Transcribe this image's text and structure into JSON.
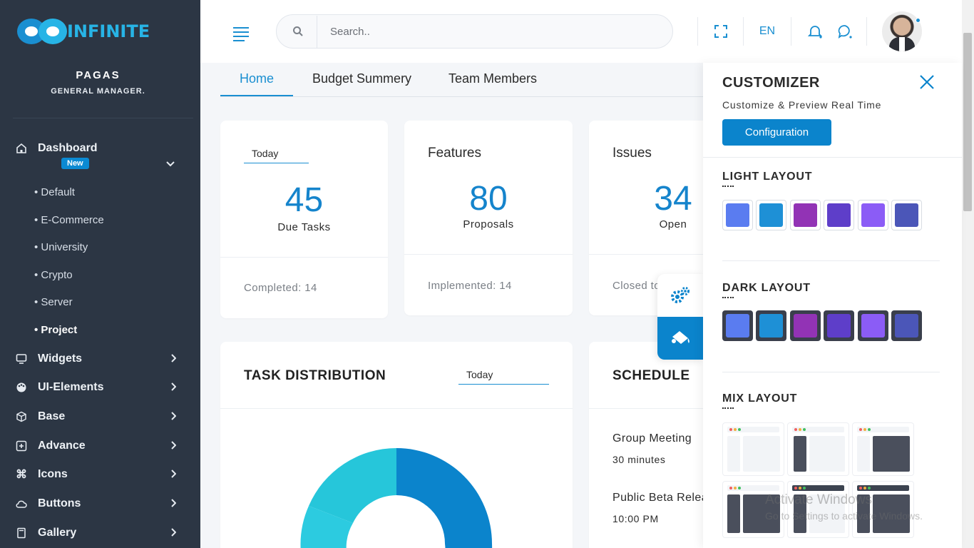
{
  "brand": {
    "name": "INFINITE",
    "accent": "#1a8fd1",
    "sidebar_bg": "#2c3644"
  },
  "user": {
    "name": "PAGAS",
    "role": "GENERAL MANAGER."
  },
  "sidebar": {
    "dashboard": {
      "label": "Dashboard",
      "badge": "New",
      "icon": "home-icon"
    },
    "dashboard_items": [
      "Default",
      "E-Commerce",
      "University",
      "Crypto",
      "Server",
      "Project"
    ],
    "active_sub_item": "Project",
    "items": [
      {
        "label": "Widgets",
        "icon": "monitor-icon"
      },
      {
        "label": "UI-Elements",
        "icon": "palette-icon"
      },
      {
        "label": "Base",
        "icon": "box-icon"
      },
      {
        "label": "Advance",
        "icon": "plus-square-icon"
      },
      {
        "label": "Icons",
        "icon": "command-icon"
      },
      {
        "label": "Buttons",
        "icon": "cloud-icon"
      },
      {
        "label": "Gallery",
        "icon": "book-icon"
      }
    ]
  },
  "header": {
    "search_placeholder": "Search..",
    "language": "EN"
  },
  "tabs": [
    {
      "label": "Home",
      "active": true
    },
    {
      "label": "Budget Summery",
      "active": false
    },
    {
      "label": "Team Members",
      "active": false
    }
  ],
  "stats": {
    "today_select": "Today",
    "tasks": {
      "value": "45",
      "label": "Due Tasks",
      "footer": "Completed: 14"
    },
    "features": {
      "title": "Features",
      "value": "80",
      "label": "Proposals",
      "footer": "Implemented: 14"
    },
    "issues": {
      "title": "Issues",
      "value": "34",
      "label": "Open",
      "footer": "Closed to"
    }
  },
  "task_distribution": {
    "title": "TASK DISTRIBUTION",
    "select": "Today",
    "colors": [
      "#0b84cc",
      "#26c6da"
    ]
  },
  "schedule": {
    "title": "SCHEDULE",
    "events": [
      {
        "name": "Group Meeting",
        "time": "30 minutes"
      },
      {
        "name": "Public Beta Relea",
        "time": "10:00 PM"
      }
    ]
  },
  "customizer": {
    "title": "CUSTOMIZER",
    "subtitle": "Customize & Preview Real Time",
    "config_button": "Configuration",
    "light_layout": "LIGHT LAYOUT",
    "dark_layout": "DARK LAYOUT",
    "mix_layout": "MIX LAYOUT",
    "swatches": [
      "#5a7cf0",
      "#1e90d6",
      "#9233b5",
      "#5e3ec9",
      "#8b5cf6",
      "#4b56b8"
    ]
  },
  "watermark": {
    "line1": "Activate Windows",
    "line2": "Go to Settings to activate Windows."
  }
}
